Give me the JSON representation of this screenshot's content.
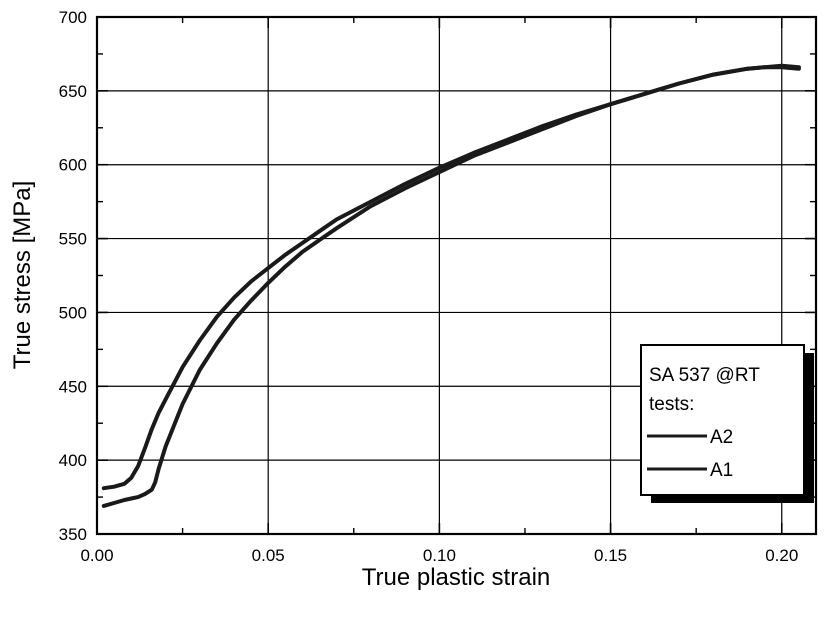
{
  "chart_data": {
    "type": "line",
    "title": "",
    "xlabel": "True plastic strain",
    "ylabel": "True stress [MPa]",
    "xlim": [
      0.0,
      0.21
    ],
    "ylim": [
      350,
      700
    ],
    "x_ticks": [
      0.0,
      0.05,
      0.1,
      0.15,
      0.2
    ],
    "x_tick_labels": [
      "0.00",
      "0.05",
      "0.10",
      "0.15",
      "0.20"
    ],
    "y_ticks": [
      350,
      400,
      450,
      500,
      550,
      600,
      650,
      700
    ],
    "y_tick_labels": [
      "350",
      "400",
      "450",
      "500",
      "550",
      "600",
      "650",
      "700"
    ],
    "grid": true,
    "legend": {
      "placement": "bottom-right",
      "title_lines": [
        "SA 537 @RT",
        "tests:"
      ],
      "entries": [
        "A2",
        "A1"
      ]
    },
    "series": [
      {
        "name": "A2",
        "x": [
          0.002,
          0.005,
          0.008,
          0.01,
          0.012,
          0.014,
          0.016,
          0.018,
          0.02,
          0.025,
          0.03,
          0.035,
          0.04,
          0.045,
          0.05,
          0.055,
          0.06,
          0.065,
          0.07,
          0.08,
          0.09,
          0.1,
          0.11,
          0.12,
          0.13,
          0.14,
          0.15,
          0.16,
          0.17,
          0.18,
          0.19,
          0.195,
          0.2,
          0.205
        ],
        "y": [
          381,
          382,
          384,
          388,
          396,
          408,
          421,
          432,
          441,
          463,
          481,
          497,
          510,
          521,
          530,
          539,
          547,
          555,
          563,
          575,
          587,
          598,
          608,
          617,
          626,
          634,
          641,
          648,
          655,
          661,
          665,
          666,
          667,
          666
        ]
      },
      {
        "name": "A1",
        "x": [
          0.002,
          0.005,
          0.008,
          0.01,
          0.012,
          0.014,
          0.016,
          0.017,
          0.018,
          0.02,
          0.025,
          0.03,
          0.035,
          0.04,
          0.045,
          0.05,
          0.055,
          0.06,
          0.065,
          0.07,
          0.08,
          0.09,
          0.1,
          0.11,
          0.12,
          0.13,
          0.14,
          0.15,
          0.16,
          0.17,
          0.18,
          0.19,
          0.195,
          0.2,
          0.205
        ],
        "y": [
          369,
          371,
          373,
          374,
          375,
          377,
          380,
          385,
          394,
          409,
          438,
          461,
          479,
          495,
          508,
          520,
          531,
          541,
          549,
          557,
          572,
          584,
          595,
          606,
          615,
          624,
          633,
          641,
          648,
          655,
          661,
          665,
          666,
          666,
          665
        ]
      }
    ]
  }
}
